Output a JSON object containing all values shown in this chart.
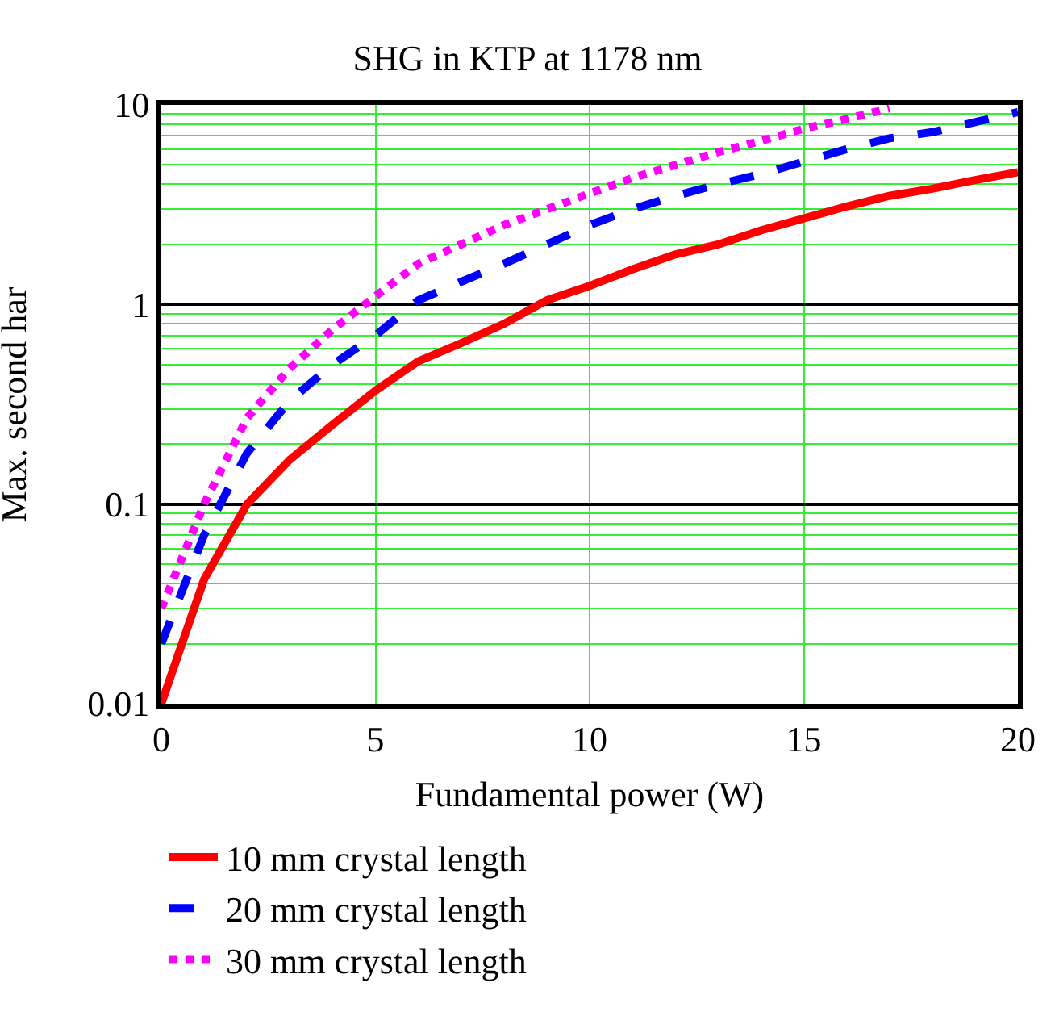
{
  "chart_data": {
    "type": "line",
    "title": "SHG in KTP at 1178 nm",
    "xlabel": "Fundamental power (W)",
    "ylabel": "Max. second har",
    "x": [
      0,
      1,
      2,
      3,
      4,
      5,
      6,
      7,
      8,
      9,
      10,
      11,
      12,
      13,
      14,
      15,
      16,
      17,
      18,
      19,
      20
    ],
    "series": [
      {
        "name": "10 mm crystal length",
        "color": "#ff0000",
        "line_style": "solid",
        "values": [
          0.01,
          0.042,
          0.1,
          0.167,
          0.25,
          0.37,
          0.52,
          0.64,
          0.8,
          1.05,
          1.24,
          1.5,
          1.78,
          2.0,
          2.35,
          2.7,
          3.1,
          3.5,
          3.8,
          4.2,
          4.6
        ]
      },
      {
        "name": "20 mm crystal length",
        "color": "#0000ff",
        "line_style": "dashed",
        "values": [
          0.02,
          0.07,
          0.18,
          0.33,
          0.5,
          0.7,
          1.05,
          1.3,
          1.6,
          2.0,
          2.5,
          3.0,
          3.5,
          4.0,
          4.5,
          5.2,
          6.0,
          6.8,
          7.3,
          8.2,
          9.2
        ]
      },
      {
        "name": "30 mm crystal length",
        "color": "#ff00ff",
        "line_style": "dotted",
        "values": [
          0.03,
          0.1,
          0.27,
          0.48,
          0.75,
          1.1,
          1.6,
          2.0,
          2.5,
          3.0,
          3.6,
          4.3,
          5.0,
          5.8,
          6.6,
          7.6,
          8.5,
          9.6,
          null,
          null,
          null
        ]
      }
    ],
    "log": "y",
    "xlim": [
      0,
      20
    ],
    "xticks": [
      0,
      5,
      10,
      15,
      20
    ],
    "ylim": [
      0.01,
      10
    ],
    "yticks": [
      0.01,
      0.1,
      1,
      10
    ],
    "grid": true,
    "legend": "bottom"
  }
}
